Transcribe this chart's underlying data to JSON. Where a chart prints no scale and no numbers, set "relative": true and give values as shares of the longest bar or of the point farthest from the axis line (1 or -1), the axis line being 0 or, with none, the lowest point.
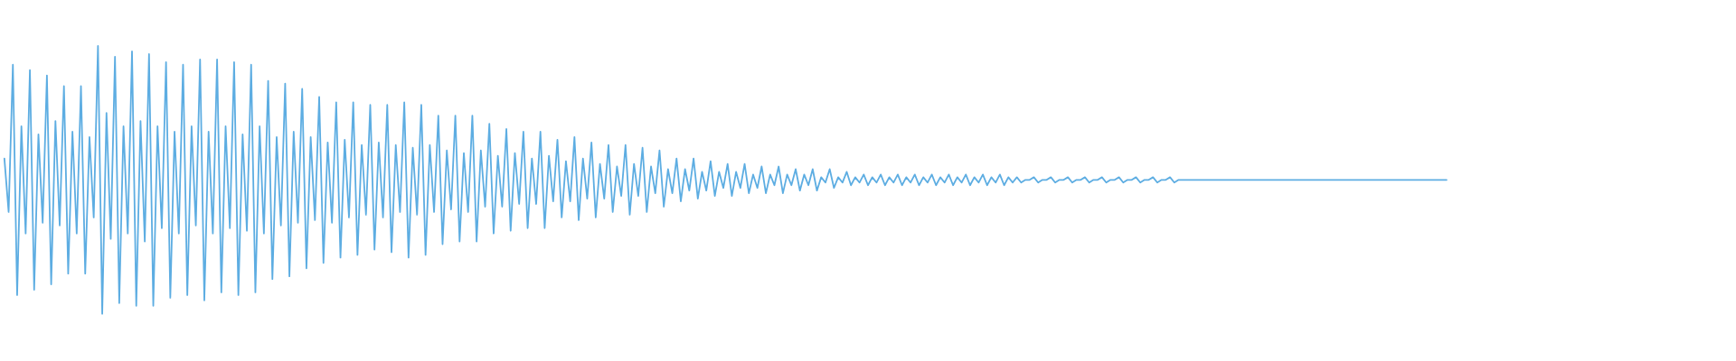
{
  "chart_data": {
    "type": "line",
    "relative": true,
    "tick_labels": false,
    "color": "#5dade2",
    "categories": [
      null,
      null,
      null,
      null,
      null,
      null,
      null,
      null,
      null,
      null,
      null,
      null,
      null,
      null,
      null,
      null,
      null,
      null,
      null,
      null,
      null,
      null,
      null,
      null,
      null,
      null,
      null,
      null,
      null,
      null,
      null,
      null,
      null,
      null,
      null,
      null,
      null,
      null,
      null,
      null,
      null,
      null,
      null,
      null,
      null,
      null,
      null,
      null,
      null,
      null,
      null,
      null,
      null,
      null,
      null,
      null,
      null,
      null,
      null,
      null,
      null,
      null,
      null,
      null,
      null,
      null,
      null,
      null,
      null,
      null,
      null,
      null,
      null,
      null,
      null,
      null,
      null,
      null,
      null,
      null,
      null,
      null,
      null,
      null,
      null,
      null,
      null,
      null,
      null,
      null,
      null,
      null,
      null,
      null,
      null,
      null,
      null,
      null,
      null,
      null,
      null,
      null,
      null,
      null,
      null,
      null,
      null,
      null,
      null,
      null,
      null,
      null,
      null,
      null,
      null,
      null,
      null,
      null,
      null,
      null,
      null,
      null,
      null,
      null,
      null,
      null,
      null,
      null,
      null,
      null,
      null,
      null,
      null,
      null,
      null,
      null,
      null,
      null,
      null,
      null,
      null,
      null,
      null,
      null,
      null,
      null,
      null,
      null,
      null,
      null,
      null,
      null,
      null,
      null,
      null,
      null,
      null,
      null,
      null,
      null,
      null,
      null,
      null,
      null,
      null,
      null,
      null,
      null,
      null,
      null,
      null,
      null,
      null,
      null,
      null,
      null,
      null,
      null,
      null,
      null,
      null,
      null,
      null,
      null,
      null,
      null,
      null,
      null,
      null,
      null,
      null,
      null,
      null,
      null,
      null,
      null,
      null,
      null,
      null,
      null,
      null,
      null,
      null,
      null,
      null,
      null,
      null,
      null,
      null,
      null,
      null,
      null,
      null,
      null,
      null,
      null,
      null,
      null,
      null,
      null,
      null,
      null,
      null,
      null,
      null,
      null,
      null,
      null,
      null,
      null,
      null,
      null,
      null,
      null,
      null,
      null,
      null,
      null,
      null,
      null,
      null,
      null,
      null,
      null,
      null,
      null,
      null,
      null,
      null,
      null,
      null,
      null,
      null,
      null,
      null,
      null,
      null,
      null,
      null,
      null,
      null,
      null,
      null,
      null,
      null,
      null,
      null,
      null,
      null,
      null,
      null,
      null,
      null,
      null,
      null,
      null,
      null,
      null,
      null,
      null,
      null,
      null,
      null,
      null,
      null,
      null,
      null,
      null,
      null,
      null,
      null,
      null,
      null,
      null,
      null,
      null,
      null,
      null,
      null,
      null,
      null,
      null,
      null,
      null,
      null,
      null,
      null,
      null,
      null,
      null,
      null,
      null,
      null,
      null,
      null,
      null,
      null,
      null,
      null,
      null,
      null,
      null,
      null,
      null,
      null,
      null,
      null,
      null,
      null,
      null,
      null,
      null,
      null,
      null,
      null,
      null,
      null,
      null,
      null,
      null
    ],
    "values": [
      0.58,
      0.38,
      0.93,
      0.07,
      0.7,
      0.3,
      0.91,
      0.09,
      0.67,
      0.34,
      0.89,
      0.11,
      0.72,
      0.33,
      0.85,
      0.15,
      0.68,
      0.3,
      0.85,
      0.15,
      0.66,
      0.36,
      1,
      0,
      0.75,
      0.28,
      0.96,
      0.04,
      0.7,
      0.3,
      0.98,
      0.03,
      0.72,
      0.27,
      0.97,
      0.03,
      0.7,
      0.32,
      0.94,
      0.06,
      0.68,
      0.3,
      0.93,
      0.07,
      0.7,
      0.33,
      0.95,
      0.05,
      0.68,
      0.3,
      0.95,
      0.08,
      0.7,
      0.32,
      0.94,
      0.07,
      0.67,
      0.31,
      0.93,
      0.08,
      0.7,
      0.3,
      0.87,
      0.13,
      0.66,
      0.33,
      0.86,
      0.14,
      0.68,
      0.34,
      0.84,
      0.17,
      0.66,
      0.35,
      0.81,
      0.19,
      0.64,
      0.34,
      0.79,
      0.21,
      0.65,
      0.36,
      0.79,
      0.22,
      0.63,
      0.37,
      0.78,
      0.24,
      0.64,
      0.36,
      0.78,
      0.23,
      0.63,
      0.38,
      0.79,
      0.21,
      0.62,
      0.37,
      0.78,
      0.22,
      0.63,
      0.38,
      0.74,
      0.26,
      0.61,
      0.39,
      0.74,
      0.27,
      0.6,
      0.38,
      0.74,
      0.27,
      0.61,
      0.4,
      0.71,
      0.3,
      0.59,
      0.4,
      0.69,
      0.31,
      0.6,
      0.41,
      0.68,
      0.32,
      0.58,
      0.41,
      0.68,
      0.32,
      0.59,
      0.42,
      0.65,
      0.36,
      0.57,
      0.42,
      0.66,
      0.35,
      0.58,
      0.43,
      0.64,
      0.36,
      0.56,
      0.43,
      0.63,
      0.38,
      0.55,
      0.44,
      0.63,
      0.37,
      0.56,
      0.44,
      0.62,
      0.38,
      0.55,
      0.45,
      0.61,
      0.4,
      0.54,
      0.45,
      0.58,
      0.42,
      0.54,
      0.46,
      0.58,
      0.43,
      0.53,
      0.46,
      0.57,
      0.44,
      0.53,
      0.47,
      0.56,
      0.44,
      0.53,
      0.47,
      0.56,
      0.45,
      0.52,
      0.47,
      0.55,
      0.45,
      0.52,
      0.48,
      0.55,
      0.45,
      0.52,
      0.48,
      0.54,
      0.46,
      0.52,
      0.48,
      0.54,
      0.46,
      0.51,
      0.49,
      0.54,
      0.47,
      0.51,
      0.49,
      0.53,
      0.48,
      0.51,
      0.49,
      0.52,
      0.48,
      0.51,
      0.49,
      0.52,
      0.48,
      0.51,
      0.49,
      0.52,
      0.48,
      0.51,
      0.49,
      0.52,
      0.48,
      0.51,
      0.49,
      0.52,
      0.48,
      0.51,
      0.49,
      0.52,
      0.48,
      0.51,
      0.49,
      0.52,
      0.48,
      0.51,
      0.49,
      0.52,
      0.48,
      0.51,
      0.49,
      0.52,
      0.48,
      0.51,
      0.49,
      0.51,
      0.49,
      0.5,
      0.5,
      0.51,
      0.49,
      0.5,
      0.5,
      0.51,
      0.49,
      0.5,
      0.5,
      0.51,
      0.49,
      0.5,
      0.5,
      0.51,
      0.49,
      0.5,
      0.5,
      0.51,
      0.49,
      0.5,
      0.5,
      0.51,
      0.49,
      0.5,
      0.5,
      0.51,
      0.49,
      0.5,
      0.5,
      0.51,
      0.49,
      0.5,
      0.5,
      0.51,
      0.49,
      0.5,
      0.5,
      0.5,
      0.5,
      0.5,
      0.5,
      0.5,
      0.5,
      0.5,
      0.5,
      0.5,
      0.5,
      0.5,
      0.5,
      0.5,
      0.5,
      0.5,
      0.5,
      0.5,
      0.5,
      0.5,
      0.5,
      0.5,
      0.5,
      0.5,
      0.5,
      0.5,
      0.5,
      0.5,
      0.5,
      0.5,
      0.5,
      0.5,
      0.5,
      0.5,
      0.5,
      0.5,
      0.5,
      0.5,
      0.5,
      0.5,
      0.5,
      0.5,
      0.5,
      0.5,
      0.5,
      0.5,
      0.5,
      0.5,
      0.5,
      0.5,
      0.5,
      0.5,
      0.5,
      0.5,
      0.5,
      0.5,
      0.5,
      0.5,
      0.5,
      0.5,
      0.5,
      0.5,
      0.5
    ]
  }
}
